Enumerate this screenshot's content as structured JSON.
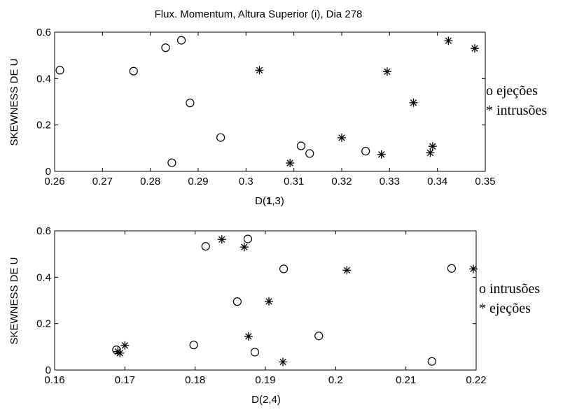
{
  "chart_data": [
    {
      "type": "scatter",
      "title": "Flux. Momentum, Altura Superior (i), Dia 278",
      "xlabel_pre": "D(",
      "xlabel_bold": "1",
      "xlabel_post": ",3)",
      "ylabel": "SKEWNESS DE U",
      "xlim": [
        0.26,
        0.35
      ],
      "ylim": [
        0,
        0.6
      ],
      "xticks": [
        "0.26",
        "0.27",
        "0.28",
        "0.29",
        "0.3",
        "0.31",
        "0.32",
        "0.33",
        "0.34",
        "0.35"
      ],
      "yticks": [
        "0",
        "0.2",
        "0.4",
        "0.6"
      ],
      "grid": false,
      "legend_lines": [
        "o ejeções",
        "* intrusões"
      ],
      "legend_position": "right",
      "series": [
        {
          "marker": "circle",
          "points": [
            [
              0.2611,
              0.436
            ],
            [
              0.2765,
              0.432
            ],
            [
              0.2832,
              0.533
            ],
            [
              0.2865,
              0.565
            ],
            [
              0.2883,
              0.295
            ],
            [
              0.2845,
              0.037
            ],
            [
              0.2947,
              0.146
            ],
            [
              0.3115,
              0.11
            ],
            [
              0.3133,
              0.077
            ],
            [
              0.325,
              0.087
            ]
          ]
        },
        {
          "marker": "asterisk",
          "points": [
            [
              0.3028,
              0.436
            ],
            [
              0.3092,
              0.036
            ],
            [
              0.32,
              0.145
            ],
            [
              0.3295,
              0.43
            ],
            [
              0.335,
              0.296
            ],
            [
              0.3283,
              0.073
            ],
            [
              0.3385,
              0.08
            ],
            [
              0.339,
              0.108
            ],
            [
              0.3423,
              0.563
            ],
            [
              0.3478,
              0.53
            ]
          ]
        }
      ]
    },
    {
      "type": "scatter",
      "title": "",
      "xlabel_pre": "D(2,4)",
      "xlabel_bold": "",
      "xlabel_post": "",
      "ylabel": "SKEWNESS DE U",
      "xlim": [
        0.16,
        0.22
      ],
      "ylim": [
        0,
        0.6
      ],
      "xticks": [
        "0.16",
        "0.17",
        "0.18",
        "0.19",
        "0.2",
        "0.21",
        "0.22"
      ],
      "yticks": [
        "0",
        "0.2",
        "0.4",
        "0.6"
      ],
      "grid": false,
      "legend_lines": [
        "o intrusões",
        "* ejeções"
      ],
      "legend_position": "right",
      "series": [
        {
          "marker": "circle",
          "points": [
            [
              0.1815,
              0.533
            ],
            [
              0.1875,
              0.565
            ],
            [
              0.1926,
              0.436
            ],
            [
              0.186,
              0.295
            ],
            [
              0.1798,
              0.108
            ],
            [
              0.1885,
              0.077
            ],
            [
              0.1976,
              0.147
            ],
            [
              0.1688,
              0.087
            ],
            [
              0.2137,
              0.037
            ],
            [
              0.2165,
              0.438
            ]
          ]
        },
        {
          "marker": "asterisk",
          "points": [
            [
              0.1838,
              0.563
            ],
            [
              0.187,
              0.53
            ],
            [
              0.1905,
              0.296
            ],
            [
              0.1876,
              0.145
            ],
            [
              0.1925,
              0.035
            ],
            [
              0.2016,
              0.43
            ],
            [
              0.2196,
              0.436
            ],
            [
              0.17,
              0.106
            ],
            [
              0.1693,
              0.073
            ],
            [
              0.169,
              0.08
            ]
          ]
        }
      ]
    }
  ]
}
